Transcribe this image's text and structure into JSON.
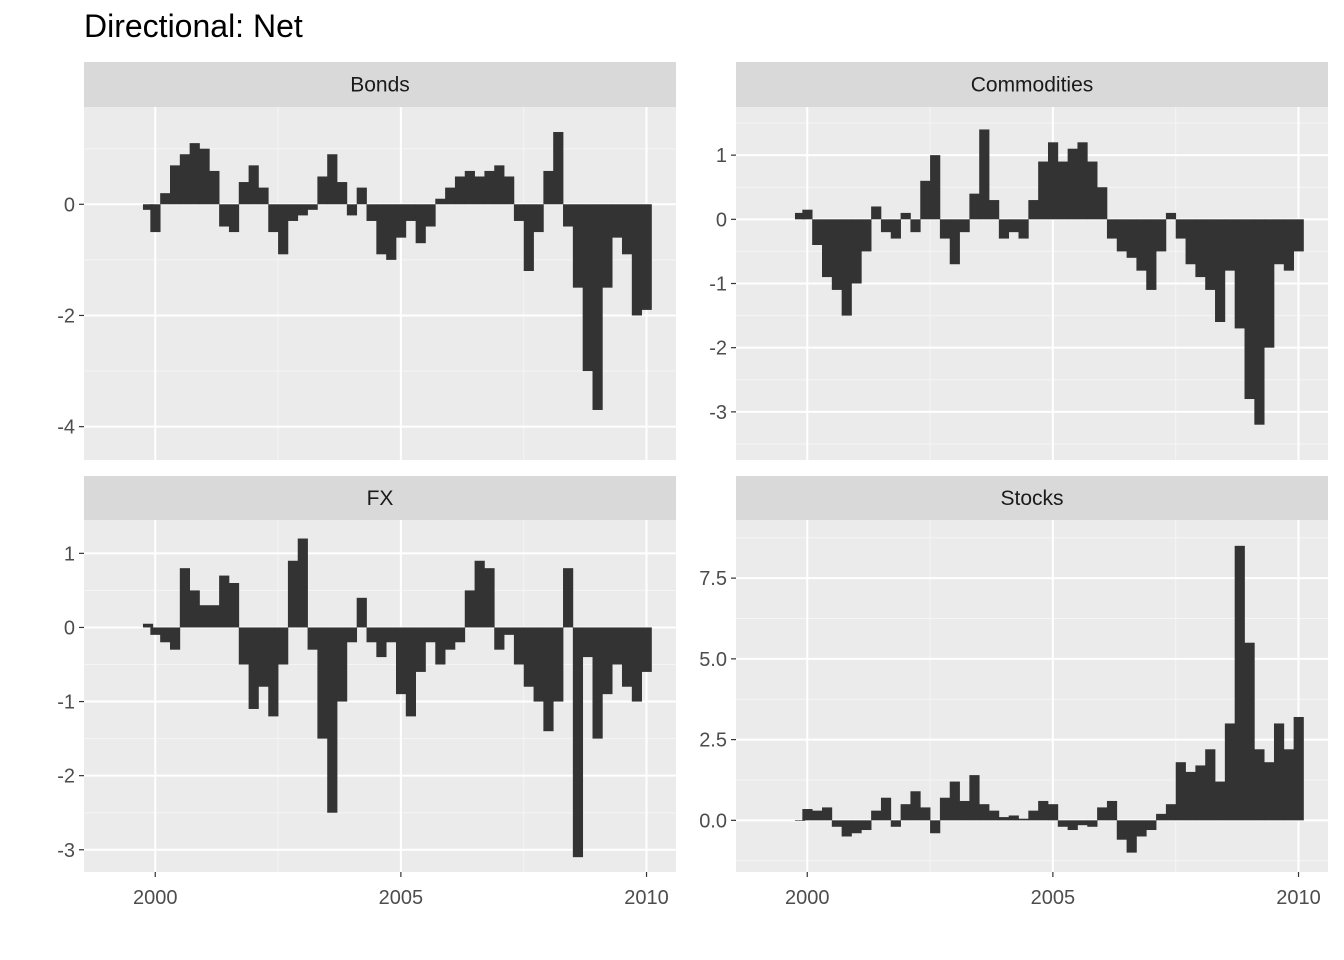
{
  "title": "Directional: Net",
  "chart_data": {
    "type": "bar",
    "title": "Directional: Net",
    "xlabel": "",
    "ylabel": "",
    "x_ticks": [
      2000,
      2005,
      2010
    ],
    "xlim": [
      1998.55,
      2010.6
    ],
    "grid": true,
    "bar_color": "#333333",
    "panel_background": "#ebebeb",
    "strip_background": "#d9d9d9",
    "panels": [
      {
        "name": "Bonds",
        "ylim": [
          -4.6,
          1.75
        ],
        "y_ticks": [
          0,
          -2,
          -4
        ],
        "y_tick_labels": [
          "0",
          "-2",
          "-4"
        ],
        "x": [
          1999.85,
          2000.0,
          2000.2,
          2000.4,
          2000.6,
          2000.8,
          2001.0,
          2001.2,
          2001.4,
          2001.6,
          2001.8,
          2002.0,
          2002.2,
          2002.4,
          2002.6,
          2002.8,
          2003.0,
          2003.2,
          2003.4,
          2003.6,
          2003.8,
          2004.0,
          2004.2,
          2004.4,
          2004.6,
          2004.8,
          2005.0,
          2005.2,
          2005.4,
          2005.6,
          2005.8,
          2006.0,
          2006.2,
          2006.4,
          2006.6,
          2006.8,
          2007.0,
          2007.2,
          2007.4,
          2007.6,
          2007.8,
          2008.0,
          2008.2,
          2008.4,
          2008.6,
          2008.8,
          2009.0,
          2009.2,
          2009.4,
          2009.6,
          2009.8,
          2010.0
        ],
        "values": [
          -0.1,
          -0.5,
          0.2,
          0.7,
          0.9,
          1.1,
          1.0,
          0.6,
          -0.4,
          -0.5,
          0.4,
          0.7,
          0.3,
          -0.5,
          -0.9,
          -0.3,
          -0.2,
          -0.1,
          0.5,
          0.9,
          0.4,
          -0.2,
          0.3,
          -0.3,
          -0.9,
          -1.0,
          -0.6,
          -0.3,
          -0.7,
          -0.4,
          0.1,
          0.3,
          0.5,
          0.6,
          0.5,
          0.6,
          0.7,
          0.5,
          -0.3,
          -1.2,
          -0.5,
          0.6,
          1.3,
          -0.4,
          -1.5,
          -3.0,
          -3.7,
          -1.5,
          -0.6,
          -0.9,
          -2.0,
          -1.9
        ]
      },
      {
        "name": "Commodities",
        "ylim": [
          -3.75,
          1.75
        ],
        "y_ticks": [
          1,
          0,
          -1,
          -2,
          -3
        ],
        "y_tick_labels": [
          "1",
          "0",
          "-1",
          "-2",
          "-3"
        ],
        "x": [
          1999.85,
          2000.0,
          2000.2,
          2000.4,
          2000.6,
          2000.8,
          2001.0,
          2001.2,
          2001.4,
          2001.6,
          2001.8,
          2002.0,
          2002.2,
          2002.4,
          2002.6,
          2002.8,
          2003.0,
          2003.2,
          2003.4,
          2003.6,
          2003.8,
          2004.0,
          2004.2,
          2004.4,
          2004.6,
          2004.8,
          2005.0,
          2005.2,
          2005.4,
          2005.6,
          2005.8,
          2006.0,
          2006.2,
          2006.4,
          2006.6,
          2006.8,
          2007.0,
          2007.2,
          2007.4,
          2007.6,
          2007.8,
          2008.0,
          2008.2,
          2008.4,
          2008.6,
          2008.8,
          2009.0,
          2009.2,
          2009.4,
          2009.6,
          2009.8,
          2010.0
        ],
        "values": [
          0.1,
          0.15,
          -0.4,
          -0.9,
          -1.1,
          -1.5,
          -1.0,
          -0.5,
          0.2,
          -0.2,
          -0.3,
          0.1,
          -0.2,
          0.6,
          1.0,
          -0.3,
          -0.7,
          -0.2,
          0.4,
          1.4,
          0.3,
          -0.3,
          -0.2,
          -0.3,
          0.3,
          0.9,
          1.2,
          0.9,
          1.1,
          1.2,
          0.9,
          0.5,
          -0.3,
          -0.5,
          -0.6,
          -0.8,
          -1.1,
          -0.5,
          0.1,
          -0.3,
          -0.7,
          -0.9,
          -1.1,
          -1.6,
          -0.8,
          -1.7,
          -2.8,
          -3.2,
          -2.0,
          -0.7,
          -0.8,
          -0.5
        ]
      },
      {
        "name": "FX",
        "ylim": [
          -3.3,
          1.45
        ],
        "y_ticks": [
          1,
          0,
          -1,
          -2,
          -3
        ],
        "y_tick_labels": [
          "1",
          "0",
          "-1",
          "-2",
          "-3"
        ],
        "x": [
          1999.85,
          2000.0,
          2000.2,
          2000.4,
          2000.6,
          2000.8,
          2001.0,
          2001.2,
          2001.4,
          2001.6,
          2001.8,
          2002.0,
          2002.2,
          2002.4,
          2002.6,
          2002.8,
          2003.0,
          2003.2,
          2003.4,
          2003.6,
          2003.8,
          2004.0,
          2004.2,
          2004.4,
          2004.6,
          2004.8,
          2005.0,
          2005.2,
          2005.4,
          2005.6,
          2005.8,
          2006.0,
          2006.2,
          2006.4,
          2006.6,
          2006.8,
          2007.0,
          2007.2,
          2007.4,
          2007.6,
          2007.8,
          2008.0,
          2008.2,
          2008.4,
          2008.6,
          2008.8,
          2009.0,
          2009.2,
          2009.4,
          2009.6,
          2009.8,
          2010.0
        ],
        "values": [
          0.05,
          -0.1,
          -0.2,
          -0.3,
          0.8,
          0.5,
          0.3,
          0.3,
          0.7,
          0.6,
          -0.5,
          -1.1,
          -0.8,
          -1.2,
          -0.5,
          0.9,
          1.2,
          -0.3,
          -1.5,
          -2.5,
          -1.0,
          -0.2,
          0.4,
          -0.2,
          -0.4,
          -0.2,
          -0.9,
          -1.2,
          -0.6,
          -0.2,
          -0.5,
          -0.3,
          -0.2,
          0.5,
          0.9,
          0.8,
          -0.3,
          -0.1,
          -0.5,
          -0.8,
          -1.0,
          -1.4,
          -1.0,
          0.8,
          -3.1,
          -0.4,
          -1.5,
          -0.9,
          -0.5,
          -0.8,
          -1.0,
          -0.6
        ]
      },
      {
        "name": "Stocks",
        "ylim": [
          -1.6,
          9.3
        ],
        "y_ticks": [
          7.5,
          5.0,
          2.5,
          0.0
        ],
        "y_tick_labels": [
          "7.5",
          "5.0",
          "2.5",
          "0.0"
        ],
        "x": [
          1999.85,
          2000.0,
          2000.2,
          2000.4,
          2000.6,
          2000.8,
          2001.0,
          2001.2,
          2001.4,
          2001.6,
          2001.8,
          2002.0,
          2002.2,
          2002.4,
          2002.6,
          2002.8,
          2003.0,
          2003.2,
          2003.4,
          2003.6,
          2003.8,
          2004.0,
          2004.2,
          2004.4,
          2004.6,
          2004.8,
          2005.0,
          2005.2,
          2005.4,
          2005.6,
          2005.8,
          2006.0,
          2006.2,
          2006.4,
          2006.6,
          2006.8,
          2007.0,
          2007.2,
          2007.4,
          2007.6,
          2007.8,
          2008.0,
          2008.2,
          2008.4,
          2008.6,
          2008.8,
          2009.0,
          2009.2,
          2009.4,
          2009.6,
          2009.8,
          2010.0
        ],
        "values": [
          0.0,
          0.35,
          0.3,
          0.4,
          -0.2,
          -0.5,
          -0.4,
          -0.3,
          0.3,
          0.7,
          -0.2,
          0.5,
          0.9,
          0.4,
          -0.4,
          0.7,
          1.2,
          0.6,
          1.4,
          0.5,
          0.3,
          0.1,
          0.15,
          0.05,
          0.3,
          0.6,
          0.5,
          -0.2,
          -0.3,
          -0.15,
          -0.2,
          0.4,
          0.6,
          -0.6,
          -1.0,
          -0.5,
          -0.3,
          0.2,
          0.5,
          1.8,
          1.5,
          1.7,
          2.2,
          1.2,
          3.0,
          8.5,
          5.5,
          2.2,
          1.8,
          3.0,
          2.2,
          3.2
        ]
      }
    ]
  }
}
